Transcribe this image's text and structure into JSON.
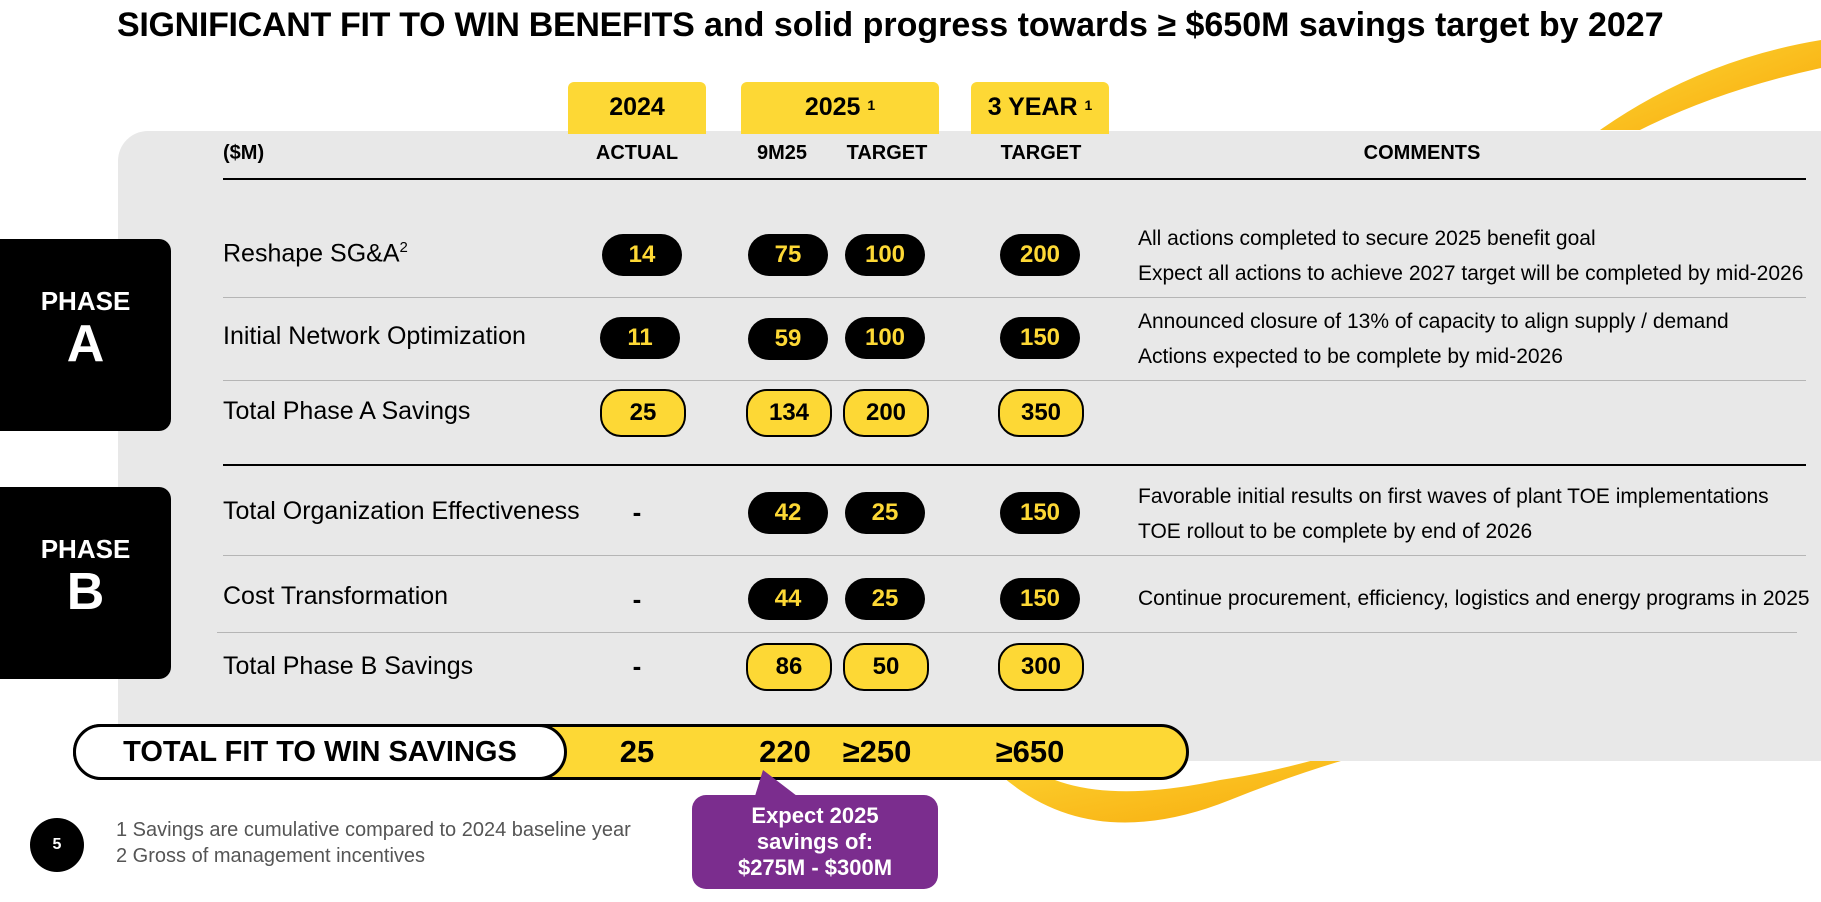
{
  "title": {
    "caps": "SIGNIFICANT FIT TO WIN BENEFITS",
    "rest": "and solid progress towards ≥ $650M savings target by 2027"
  },
  "header": {
    "tab_2024": "2024",
    "tab_2025": "2025",
    "tab_2025_sup": "1",
    "tab_3year": "3 YEAR",
    "tab_3year_sup": "1",
    "col_units": "($M)",
    "col_actual": "ACTUAL",
    "col_9m25": "9M25",
    "col_target_2025": "TARGET",
    "col_target_3y": "TARGET",
    "col_comments": "COMMENTS"
  },
  "phase_a": {
    "label_top": "PHASE",
    "label_letter": "A",
    "rows": [
      {
        "name": "Reshape SG&A",
        "sup": "2",
        "actual": "14",
        "m9": "75",
        "target": "100",
        "three_year": "200",
        "comment1": "All actions completed to secure 2025 benefit goal",
        "comment2": "Expect all actions to achieve 2027 target will be completed by mid-2026"
      },
      {
        "name": "Initial Network Optimization",
        "actual": "11",
        "m9": "59",
        "target": "100",
        "three_year": "150",
        "comment1": "Announced closure of 13% of capacity to align supply / demand",
        "comment2": "Actions expected to be complete by mid-2026"
      },
      {
        "name": "Total Phase A Savings",
        "actual": "25",
        "m9": "134",
        "target": "200",
        "three_year": "350"
      }
    ]
  },
  "phase_b": {
    "label_top": "PHASE",
    "label_letter": "B",
    "rows": [
      {
        "name": "Total Organization Effectiveness",
        "actual": "-",
        "m9": "42",
        "target": "25",
        "three_year": "150",
        "comment1": "Favorable initial results on first waves of plant TOE implementations",
        "comment2": "TOE rollout to be complete by end of 2026"
      },
      {
        "name": "Cost Transformation",
        "actual": "-",
        "m9": "44",
        "target": "25",
        "three_year": "150",
        "comment1": "Continue procurement, efficiency, logistics and energy programs in 2025"
      },
      {
        "name": "Total Phase B Savings",
        "actual": "-",
        "m9": "86",
        "target": "50",
        "three_year": "300"
      }
    ]
  },
  "total": {
    "label": "TOTAL FIT TO WIN SAVINGS",
    "actual": "25",
    "m9": "220",
    "target": "≥250",
    "three_year": "≥650"
  },
  "callout": {
    "line1": "Expect 2025",
    "line2": "savings of:",
    "line3": "$275M - $300M"
  },
  "footer": {
    "page_number": "5",
    "note1": "1 Savings are cumulative compared to 2024 baseline year",
    "note2": "2 Gross of management incentives"
  },
  "colors": {
    "accent_yellow": "#fdd835",
    "callout_purple": "#7b2d8e",
    "panel_gray": "#e8e8e8"
  }
}
